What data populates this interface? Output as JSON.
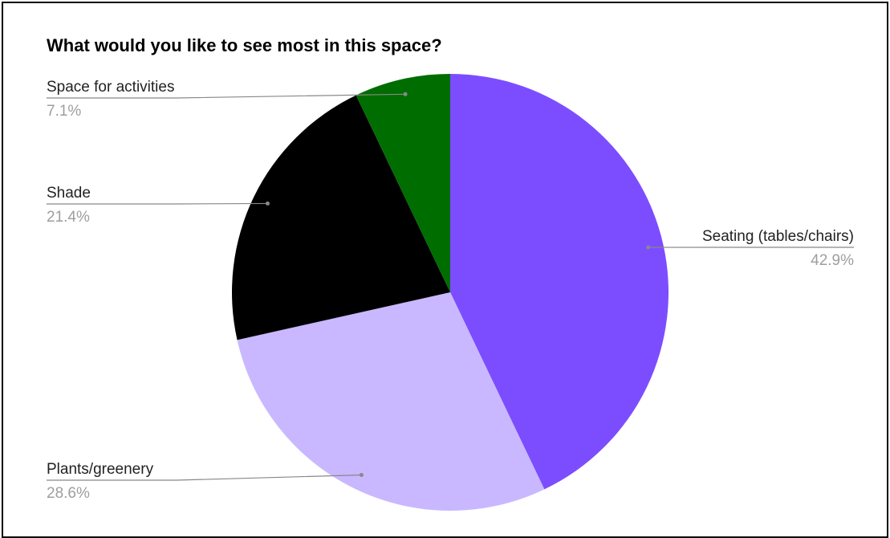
{
  "chart_data": {
    "type": "pie",
    "title": "What would you like to see most in this space?",
    "slices": [
      {
        "label": "Seating (tables/chairs)",
        "value": 42.9,
        "value_label": "42.9%",
        "color": "#7c4dff"
      },
      {
        "label": "Plants/greenery",
        "value": 28.6,
        "value_label": "28.6%",
        "color": "#c9b8ff"
      },
      {
        "label": "Shade",
        "value": 21.4,
        "value_label": "21.4%",
        "color": "#000000"
      },
      {
        "label": "Space for activities",
        "value": 7.1,
        "value_label": "7.1%",
        "color": "#006d00"
      }
    ],
    "legend": "none"
  }
}
